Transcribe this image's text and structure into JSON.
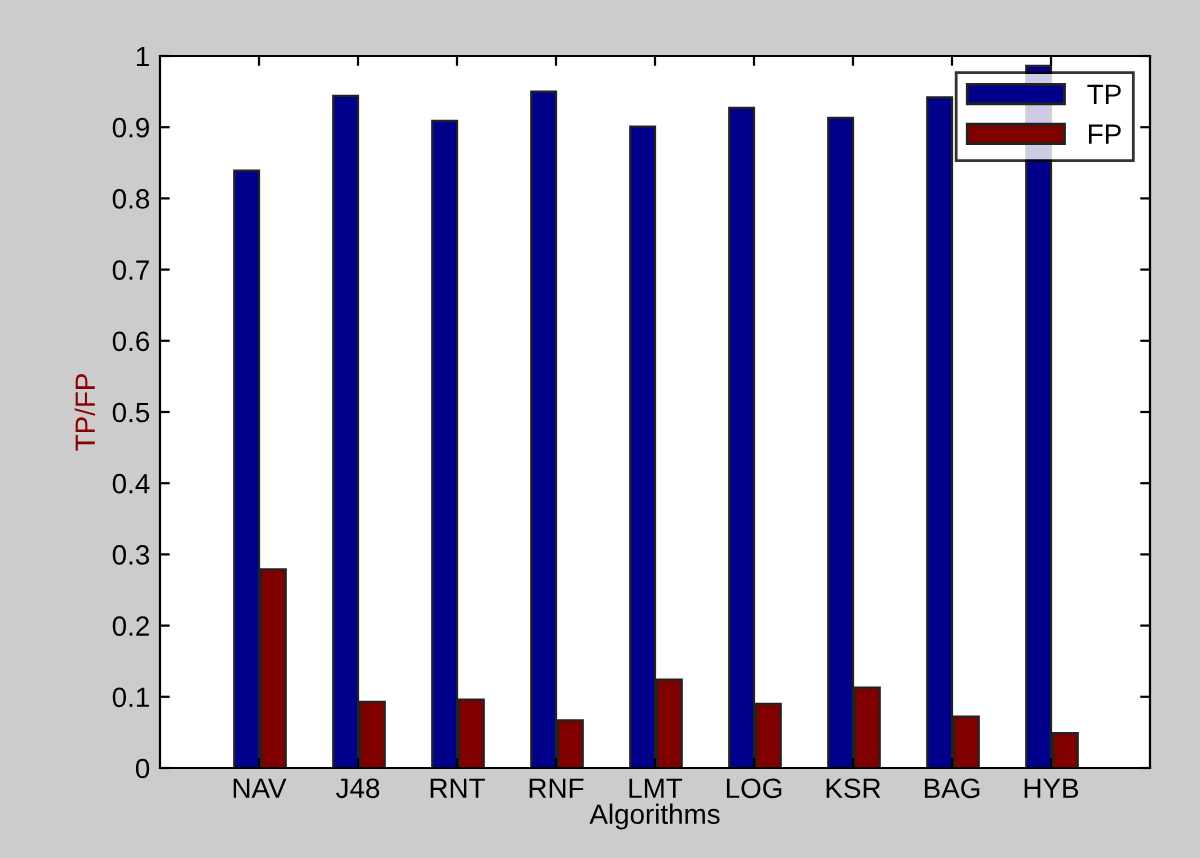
{
  "chart_data": {
    "type": "bar",
    "xlabel": "Algorithms",
    "ylabel": "TP/FP",
    "categories": [
      "NAV",
      "J48",
      "RNT",
      "RNF",
      "LMT",
      "LOG",
      "KSR",
      "BAG",
      "HYB"
    ],
    "series": [
      {
        "name": "TP",
        "color": "#00008b",
        "values": [
          0.839,
          0.944,
          0.909,
          0.95,
          0.901,
          0.927,
          0.913,
          0.942,
          0.986
        ]
      },
      {
        "name": "FP",
        "color": "#800000",
        "values": [
          0.279,
          0.093,
          0.096,
          0.067,
          0.124,
          0.09,
          0.113,
          0.072,
          0.049
        ]
      }
    ],
    "ylim": [
      0,
      1
    ],
    "yticks": [
      0,
      0.1,
      0.2,
      0.3,
      0.4,
      0.5,
      0.6,
      0.7,
      0.8,
      0.9,
      1
    ],
    "grid": false,
    "legend": "top right"
  }
}
